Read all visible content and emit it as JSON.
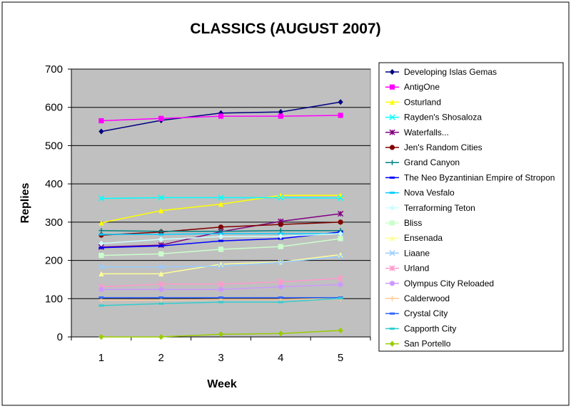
{
  "chart_data": {
    "type": "line",
    "title": "CLASSICS (AUGUST 2007)",
    "xlabel": "Week",
    "ylabel": "Replies",
    "categories": [
      "1",
      "2",
      "3",
      "4",
      "5"
    ],
    "ylim": [
      0,
      700
    ],
    "yticks": [
      "0",
      "100",
      "200",
      "300",
      "400",
      "500",
      "600",
      "700"
    ],
    "grid": true,
    "legend_position": "right",
    "plot_background": "#c0c0c0",
    "series": [
      {
        "name": "Developing Islas Gemas",
        "color": "#000080",
        "marker": "diamond",
        "values": [
          537,
          566,
          585,
          588,
          614
        ]
      },
      {
        "name": "AntigOne",
        "color": "#ff00ff",
        "marker": "square",
        "values": [
          565,
          571,
          577,
          577,
          579
        ]
      },
      {
        "name": "Osturland",
        "color": "#ffff00",
        "marker": "triangle",
        "values": [
          298,
          330,
          347,
          370,
          370
        ]
      },
      {
        "name": "Rayden's Shosaloza",
        "color": "#00ffff",
        "marker": "x",
        "values": [
          362,
          364,
          364,
          364,
          363
        ]
      },
      {
        "name": "Waterfalls...",
        "color": "#800080",
        "marker": "star",
        "values": [
          235,
          240,
          275,
          302,
          322
        ]
      },
      {
        "name": "Jen's Random Cities",
        "color": "#800000",
        "marker": "circle",
        "values": [
          266,
          274,
          287,
          294,
          300
        ]
      },
      {
        "name": "Grand Canyon",
        "color": "#008080",
        "marker": "plus",
        "values": [
          278,
          276,
          276,
          278,
          278
        ]
      },
      {
        "name": "The Neo Byzantinian Empire of Stropon",
        "color": "#0000ff",
        "marker": "dash",
        "values": [
          233,
          238,
          251,
          257,
          274
        ]
      },
      {
        "name": "Nova Vesfalo",
        "color": "#00ccff",
        "marker": "dash",
        "values": [
          268,
          268,
          270,
          270,
          270
        ]
      },
      {
        "name": "Terraforming Teton",
        "color": "#ccffff",
        "marker": "diamond",
        "values": [
          244,
          255,
          262,
          263,
          270
        ]
      },
      {
        "name": "Bliss",
        "color": "#ccffcc",
        "marker": "square",
        "values": [
          213,
          217,
          229,
          236,
          257
        ]
      },
      {
        "name": "Ensenada",
        "color": "#ffff99",
        "marker": "triangle",
        "values": [
          165,
          165,
          190,
          196,
          215
        ]
      },
      {
        "name": "Liaane",
        "color": "#99ccff",
        "marker": "x",
        "values": [
          183,
          183,
          185,
          195,
          210
        ]
      },
      {
        "name": "Urland",
        "color": "#ff99cc",
        "marker": "star",
        "values": [
          131,
          138,
          138,
          144,
          153
        ]
      },
      {
        "name": "Olympus City Reloaded",
        "color": "#cc99ff",
        "marker": "circle",
        "values": [
          124,
          124,
          124,
          131,
          137
        ]
      },
      {
        "name": "Calderwood",
        "color": "#ffcc99",
        "marker": "plus",
        "values": [
          96,
          96,
          98,
          98,
          100
        ]
      },
      {
        "name": "Crystal City",
        "color": "#3366ff",
        "marker": "dash",
        "values": [
          103,
          103,
          103,
          103,
          103
        ]
      },
      {
        "name": "Capporth City",
        "color": "#33cccc",
        "marker": "dash",
        "values": [
          82,
          87,
          91,
          91,
          101
        ]
      },
      {
        "name": "San Portello",
        "color": "#99cc00",
        "marker": "diamond",
        "values": [
          0,
          0,
          7,
          9,
          17
        ]
      }
    ]
  }
}
